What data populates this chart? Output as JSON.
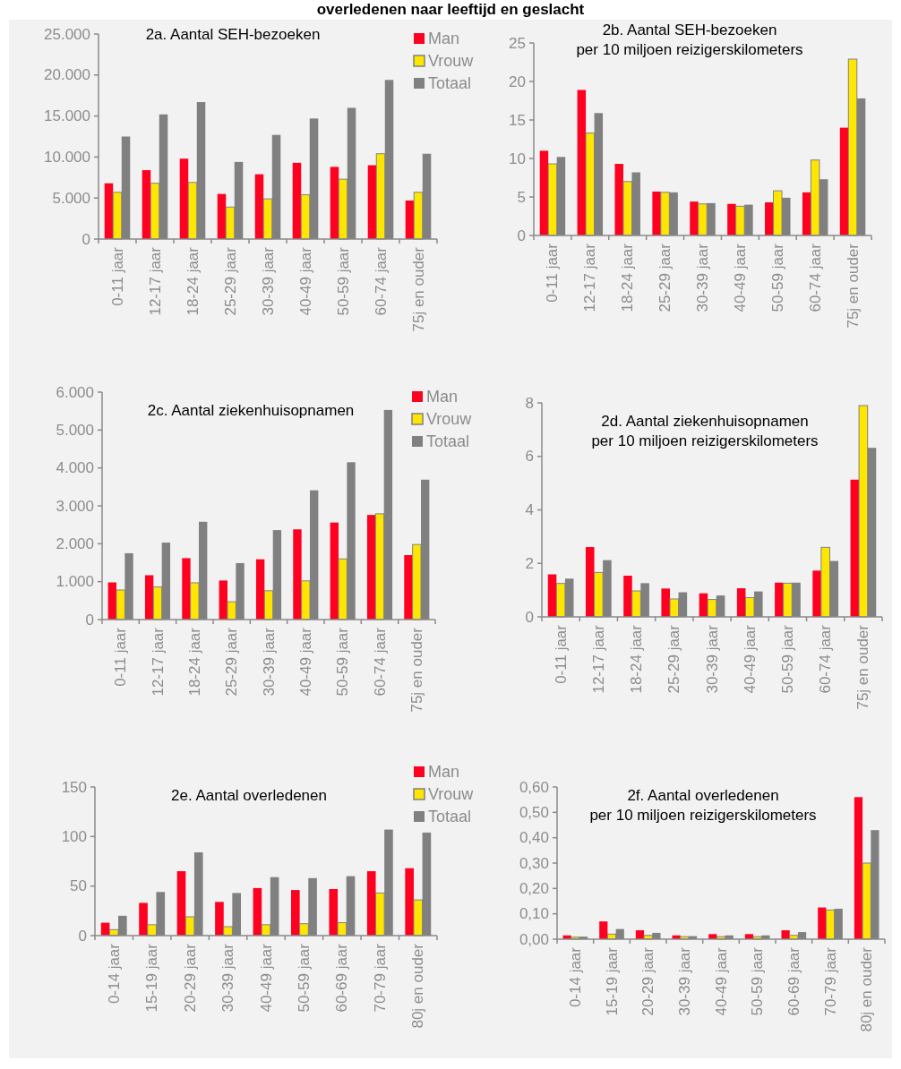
{
  "chart_data": [
    {
      "type": "bar",
      "title": "2a. Aantal SEH-bezoeken",
      "annotations": [
        "overledenen naar leeftijd en geslacht"
      ],
      "categories": [
        "0-11 jaar",
        "12-17 jaar",
        "18-24 jaar",
        "25-29 jaar",
        "30-39 jaar",
        "40-49 jaar",
        "50-59 jaar",
        "60-74 jaar",
        "75j en ouder"
      ],
      "series": [
        {
          "name": "Man",
          "color": "#ff0020",
          "values": [
            6800,
            8400,
            9800,
            5500,
            7900,
            9300,
            8800,
            9000,
            4700
          ]
        },
        {
          "name": "Vrouw",
          "color": "#ffe600",
          "values": [
            5700,
            6800,
            6900,
            3900,
            4900,
            5400,
            7300,
            10400,
            5700
          ]
        },
        {
          "name": "Totaal",
          "color": "#808080",
          "values": [
            12500,
            15200,
            16700,
            9400,
            12700,
            14700,
            16000,
            19400,
            10400
          ]
        }
      ],
      "ylim": [
        0,
        25000
      ],
      "yticks": [
        0,
        {
          "value": 5000,
          "label": "5.000"
        },
        {
          "value": 10000,
          "label": "10.000"
        },
        {
          "value": 15000,
          "label": "15.000"
        },
        {
          "value": 20000,
          "label": "20.000"
        },
        {
          "value": 25000,
          "label": "25.000"
        }
      ],
      "grid": false,
      "legend": "top right"
    },
    {
      "type": "bar",
      "title": "2b. Aantal SEH-bezoeken\nper 10 miljoen reizigerskilometers",
      "categories": [
        "0-11 jaar",
        "12-17 jaar",
        "18-24 jaar",
        "25-29 jaar",
        "30-39 jaar",
        "40-49 jaar",
        "50-59 jaar",
        "60-74 jaar",
        "75j en ouder"
      ],
      "series": [
        {
          "color": "#ff0020",
          "values": [
            11.0,
            18.9,
            9.3,
            5.7,
            4.4,
            4.1,
            4.3,
            5.6,
            14.0
          ]
        },
        {
          "color": "#ffe600",
          "values": [
            9.3,
            13.3,
            7.0,
            5.6,
            4.1,
            3.8,
            5.8,
            9.8,
            22.9
          ]
        },
        {
          "color": "#808080",
          "values": [
            10.2,
            15.9,
            8.2,
            5.6,
            4.2,
            4.0,
            4.9,
            7.3,
            17.8
          ]
        }
      ],
      "ylim": [
        0,
        25
      ],
      "yticks": [
        0,
        5,
        10,
        15,
        20,
        25
      ],
      "grid": false,
      "legend": false
    },
    {
      "type": "bar",
      "title": "2c. Aantal ziekenhuisopnamen",
      "categories": [
        "0-11 jaar",
        "12-17 jaar",
        "18-24 jaar",
        "25-29 jaar",
        "30-39 jaar",
        "40-49 jaar",
        "50-59 jaar",
        "60-74 jaar",
        "75j en ouder"
      ],
      "series": [
        {
          "name": "Man",
          "color": "#ff0020",
          "values": [
            980,
            1170,
            1620,
            1030,
            1590,
            2380,
            2560,
            2760,
            1700
          ]
        },
        {
          "name": "Vrouw",
          "color": "#ffe600",
          "values": [
            780,
            860,
            970,
            470,
            760,
            1020,
            1600,
            2790,
            1980
          ]
        },
        {
          "name": "Totaal",
          "color": "#808080",
          "values": [
            1750,
            2030,
            2580,
            1490,
            2360,
            3410,
            4150,
            5530,
            3690
          ]
        }
      ],
      "ylim": [
        0,
        6000
      ],
      "yticks": [
        0,
        {
          "value": 1000,
          "label": "1.000"
        },
        {
          "value": 2000,
          "label": "2.000"
        },
        {
          "value": 3000,
          "label": "3.000"
        },
        {
          "value": 4000,
          "label": "4.000"
        },
        {
          "value": 5000,
          "label": "5.000"
        },
        {
          "value": 6000,
          "label": "6.000"
        }
      ],
      "grid": false,
      "legend": "top right"
    },
    {
      "type": "bar",
      "title": "2d. Aantal ziekenhuisopnamen\nper 10 miljoen reizigerskilometers",
      "categories": [
        "0-11 jaar",
        "12-17 jaar",
        "18-24 jaar",
        "25-29 jaar",
        "30-39 jaar",
        "40-49 jaar",
        "50-59 jaar",
        "60-74 jaar",
        "75j en ouder"
      ],
      "series": [
        {
          "color": "#ff0020",
          "values": [
            1.59,
            2.61,
            1.54,
            1.06,
            0.88,
            1.07,
            1.28,
            1.73,
            5.13
          ]
        },
        {
          "color": "#ffe600",
          "values": [
            1.25,
            1.66,
            0.97,
            0.67,
            0.65,
            0.72,
            1.26,
            2.6,
            7.9
          ]
        },
        {
          "color": "#808080",
          "values": [
            1.43,
            2.12,
            1.26,
            0.92,
            0.8,
            0.95,
            1.28,
            2.09,
            6.32
          ]
        }
      ],
      "ylim": [
        0,
        8
      ],
      "yticks": [
        0,
        2,
        4,
        6,
        8
      ],
      "grid": false,
      "legend": false
    },
    {
      "type": "bar",
      "title": "2e. Aantal overledenen",
      "categories": [
        "0-14 jaar",
        "15-19 jaar",
        "20-29 jaar",
        "30-39 jaar",
        "40-49 jaar",
        "50-59 jaar",
        "60-69 jaar",
        "70-79 jaar",
        "80j en ouder"
      ],
      "series": [
        {
          "name": "Man",
          "color": "#ff0020",
          "values": [
            13,
            33,
            65,
            34,
            48,
            46,
            47,
            65,
            68
          ]
        },
        {
          "name": "Vrouw",
          "color": "#ffe600",
          "values": [
            6,
            11,
            19,
            9,
            11,
            12,
            13,
            43,
            36
          ]
        },
        {
          "name": "Totaal",
          "color": "#808080",
          "values": [
            20,
            44,
            84,
            43,
            59,
            58,
            60,
            107,
            104
          ]
        }
      ],
      "ylim": [
        0,
        150
      ],
      "yticks": [
        0,
        50,
        100,
        150
      ],
      "grid": false,
      "legend": "top right"
    },
    {
      "type": "bar",
      "title": "2f. Aantal overledenen\nper 10 miljoen reizigerskilometers",
      "categories": [
        "0-14 jaar",
        "15-19 jaar",
        "20-29 jaar",
        "30-39 jaar",
        "40-49 jaar",
        "50-59 jaar",
        "60-69 jaar",
        "70-79 jaar",
        "80j en ouder"
      ],
      "series": [
        {
          "color": "#ff0020",
          "values": [
            0.015,
            0.07,
            0.035,
            0.015,
            0.02,
            0.02,
            0.035,
            0.125,
            0.56
          ]
        },
        {
          "color": "#ffe600",
          "values": [
            0.008,
            0.02,
            0.015,
            0.01,
            0.01,
            0.01,
            0.015,
            0.115,
            0.3
          ]
        },
        {
          "color": "#808080",
          "values": [
            0.01,
            0.04,
            0.025,
            0.012,
            0.015,
            0.015,
            0.028,
            0.12,
            0.43
          ]
        }
      ],
      "ylim": [
        0,
        0.6
      ],
      "yticks": [
        {
          "value": 0,
          "label": "0,00"
        },
        {
          "value": 0.1,
          "label": "0,10"
        },
        {
          "value": 0.2,
          "label": "0,20"
        },
        {
          "value": 0.3,
          "label": "0,30"
        },
        {
          "value": 0.4,
          "label": "0,40"
        },
        {
          "value": 0.5,
          "label": "0,50"
        },
        {
          "value": 0.6,
          "label": "0,60"
        }
      ],
      "grid": false,
      "legend": false
    }
  ]
}
